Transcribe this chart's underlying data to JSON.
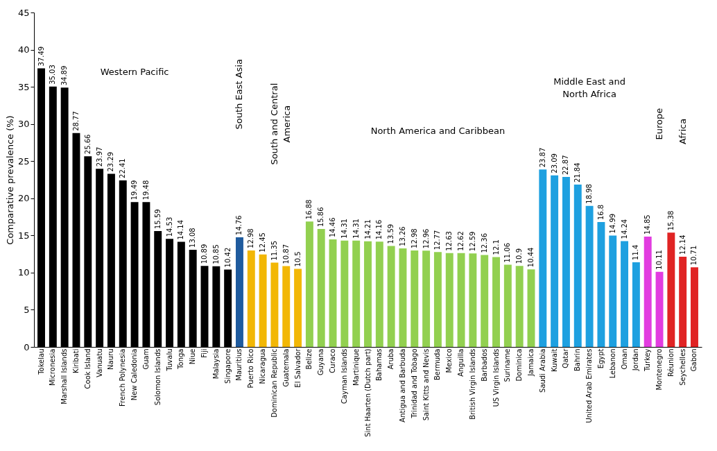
{
  "chart_data": {
    "type": "bar",
    "ylabel": "Comparative prevalence (%)",
    "categories": [
      "Tokelau",
      "Micronesia",
      "Marshall Islands",
      "Kiribati",
      "Cook Island",
      "Vanuatu",
      "Nauru",
      "French Polynesia",
      "New Caledonia",
      "Guam",
      "Solomon Islands",
      "Tuvalu",
      "Tonga",
      "Niue",
      "Fiji",
      "Malaysia",
      "Singapore",
      "Mauritius",
      "Puerto Rico",
      "Nicaragua",
      "Dominican Republic",
      "Guatemala",
      "El Salvador",
      "Belize",
      "Guyana",
      "Curaco",
      "Cayman Islands",
      "Martinique",
      "Sint Haarten (Dutch part)",
      "Bahamas",
      "Aruba",
      "Antigua and Barbuda",
      "Trinidad and Tobago",
      "Saint Kitts and Nevis",
      "Bermuda",
      "Mexico",
      "Anguilla",
      "British Virgin Islands",
      "Barbados",
      "US Virgin Islands",
      "Suriname",
      "Dominica",
      "Jamaica",
      "Saudi Arabia",
      "Kuwait",
      "Qatar",
      "Bahrin",
      "United Arab Emirates",
      "Egypt",
      "Lebanon",
      "Oman",
      "Jordan",
      "Turkey",
      "Montenegro",
      "Réunion",
      "Seychelles",
      "Gabon"
    ],
    "values": [
      37.49,
      35.03,
      34.89,
      28.77,
      25.66,
      23.97,
      23.29,
      22.41,
      19.49,
      19.48,
      15.59,
      14.53,
      14.14,
      13.08,
      10.89,
      10.85,
      10.42,
      14.76,
      12.98,
      12.45,
      11.35,
      10.87,
      10.5,
      16.88,
      15.86,
      14.46,
      14.31,
      14.31,
      14.21,
      14.16,
      13.59,
      13.26,
      12.98,
      12.96,
      12.77,
      12.63,
      12.62,
      12.59,
      12.36,
      12.1,
      11.06,
      10.9,
      10.44,
      23.87,
      23.09,
      22.87,
      21.84,
      18.98,
      16.8,
      14.99,
      14.24,
      11.4,
      14.85,
      10.11,
      15.38,
      12.14,
      10.71
    ],
    "colors": [
      "#000000",
      "#000000",
      "#000000",
      "#000000",
      "#000000",
      "#000000",
      "#000000",
      "#000000",
      "#000000",
      "#000000",
      "#000000",
      "#000000",
      "#000000",
      "#000000",
      "#000000",
      "#000000",
      "#000000",
      "#1f5b9e",
      "#f2b705",
      "#f2b705",
      "#f2b705",
      "#f2b705",
      "#f2b705",
      "#92d050",
      "#92d050",
      "#92d050",
      "#92d050",
      "#92d050",
      "#92d050",
      "#92d050",
      "#92d050",
      "#92d050",
      "#92d050",
      "#92d050",
      "#92d050",
      "#92d050",
      "#92d050",
      "#92d050",
      "#92d050",
      "#92d050",
      "#92d050",
      "#92d050",
      "#92d050",
      "#1ea0e0",
      "#1ea0e0",
      "#1ea0e0",
      "#1ea0e0",
      "#1ea0e0",
      "#1ea0e0",
      "#1ea0e0",
      "#1ea0e0",
      "#1ea0e0",
      "#e23ce0",
      "#e23ce0",
      "#e02424",
      "#e02424",
      "#e02424"
    ],
    "ylim": [
      0,
      45
    ],
    "yticks": [
      0,
      5,
      10,
      15,
      20,
      25,
      30,
      35,
      40,
      45
    ],
    "data_labels": true,
    "grid": false,
    "annotations": [
      "Western Pacific",
      "South East Asia",
      "South and Central America",
      "North America and Caribbean",
      "Middle East and North Africa",
      "Europe",
      "Africa"
    ]
  }
}
